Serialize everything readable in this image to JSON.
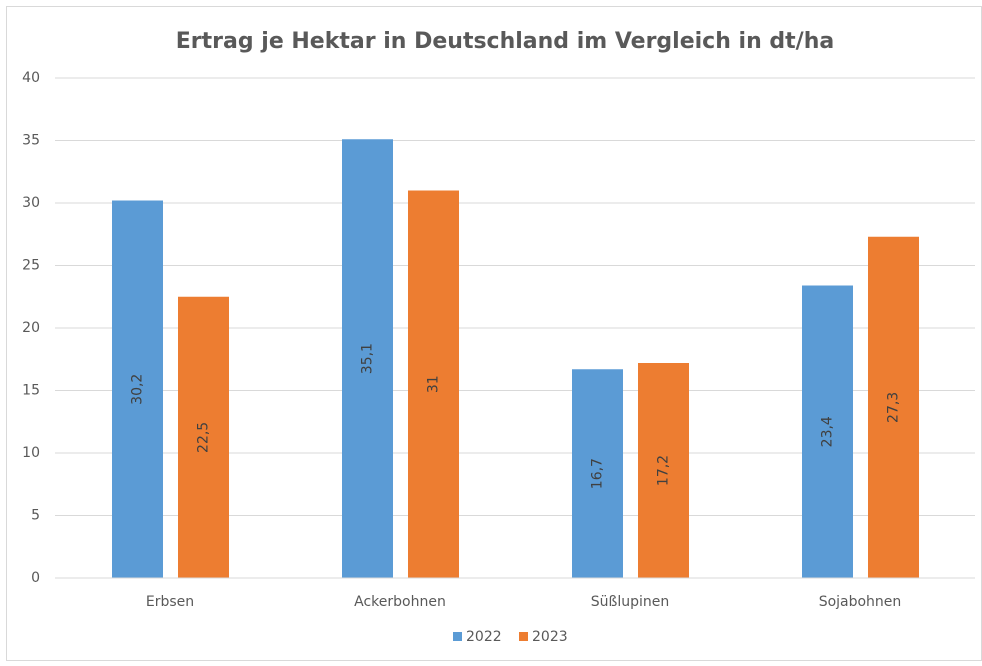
{
  "chart_data": {
    "type": "bar",
    "title": "Ertrag je Hektar in Deutschland im Vergleich in dt/ha",
    "categories": [
      "Erbsen",
      "Ackerbohnen",
      "Süßlupinen",
      "Sojabohnen"
    ],
    "series": [
      {
        "name": "2022",
        "color": "#5b9bd5",
        "values": [
          30.2,
          35.1,
          16.7,
          23.4
        ],
        "value_labels": [
          "30,2",
          "35,1",
          "16,7",
          "23,4"
        ]
      },
      {
        "name": "2023",
        "color": "#ed7d31",
        "values": [
          22.5,
          31,
          17.2,
          27.3
        ],
        "value_labels": [
          "22,5",
          "31",
          "17,2",
          "27,3"
        ]
      }
    ],
    "ylim": [
      0,
      40
    ],
    "yticks": [
      0,
      5,
      10,
      15,
      20,
      25,
      30,
      35,
      40
    ],
    "grid": true,
    "legend": "bottom"
  }
}
